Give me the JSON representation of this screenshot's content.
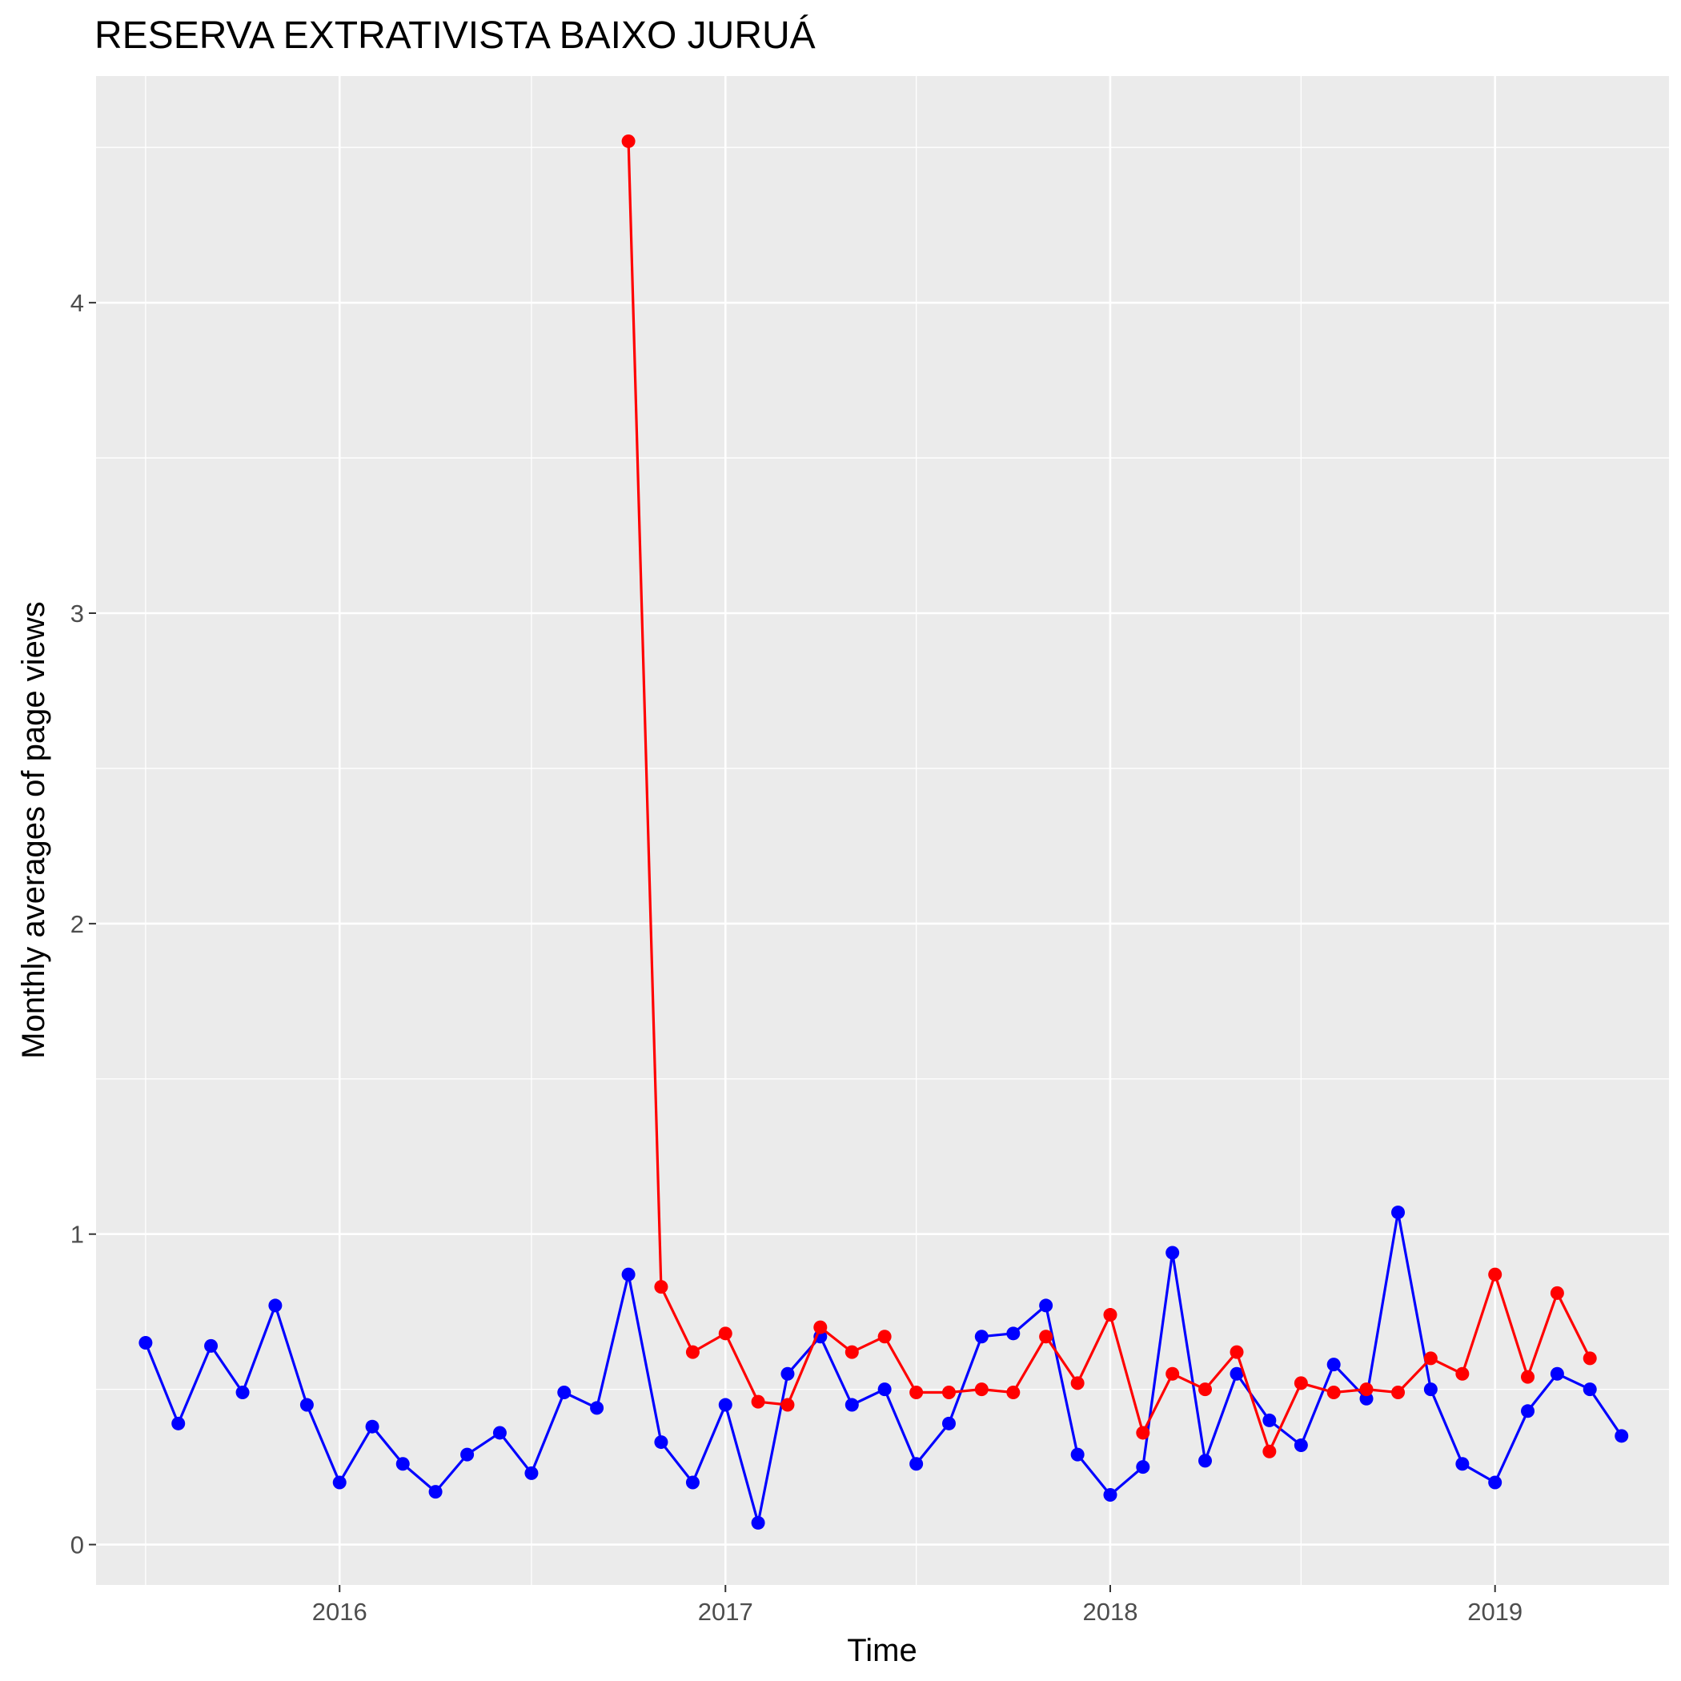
{
  "chart_data": {
    "type": "line",
    "title": "RESERVA EXTRATIVISTA BAIXO JURUÁ",
    "xlabel": "Time",
    "ylabel": "Monthly averages of page views",
    "x_ticks": [
      "2016",
      "2017",
      "2018",
      "2019"
    ],
    "y_ticks": [
      "0",
      "1",
      "2",
      "3",
      "4"
    ],
    "xlim": [
      "2015-05-15",
      "2019-06-15"
    ],
    "ylim": [
      -0.13,
      4.73
    ],
    "grid": true,
    "legend": "none",
    "series": [
      {
        "color": "#0000ff",
        "points": [
          [
            "2015-07-01",
            0.65
          ],
          [
            "2015-08-01",
            0.39
          ],
          [
            "2015-09-01",
            0.64
          ],
          [
            "2015-10-01",
            0.49
          ],
          [
            "2015-11-01",
            0.77
          ],
          [
            "2015-12-01",
            0.45
          ],
          [
            "2016-01-01",
            0.2
          ],
          [
            "2016-02-01",
            0.38
          ],
          [
            "2016-03-01",
            0.26
          ],
          [
            "2016-04-01",
            0.17
          ],
          [
            "2016-05-01",
            0.29
          ],
          [
            "2016-06-01",
            0.36
          ],
          [
            "2016-07-01",
            0.23
          ],
          [
            "2016-08-01",
            0.49
          ],
          [
            "2016-09-01",
            0.44
          ],
          [
            "2016-10-01",
            0.87
          ],
          [
            "2016-11-01",
            0.33
          ],
          [
            "2016-12-01",
            0.2
          ],
          [
            "2017-01-01",
            0.45
          ],
          [
            "2017-02-01",
            0.07
          ],
          [
            "2017-03-01",
            0.55
          ],
          [
            "2017-04-01",
            0.67
          ],
          [
            "2017-05-01",
            0.45
          ],
          [
            "2017-06-01",
            0.5
          ],
          [
            "2017-07-01",
            0.26
          ],
          [
            "2017-08-01",
            0.39
          ],
          [
            "2017-09-01",
            0.67
          ],
          [
            "2017-10-01",
            0.68
          ],
          [
            "2017-11-01",
            0.77
          ],
          [
            "2017-12-01",
            0.29
          ],
          [
            "2018-01-01",
            0.16
          ],
          [
            "2018-02-01",
            0.25
          ],
          [
            "2018-03-01",
            0.94
          ],
          [
            "2018-04-01",
            0.27
          ],
          [
            "2018-05-01",
            0.55
          ],
          [
            "2018-06-01",
            0.4
          ],
          [
            "2018-07-01",
            0.32
          ],
          [
            "2018-08-01",
            0.58
          ],
          [
            "2018-09-01",
            0.47
          ],
          [
            "2018-10-01",
            1.07
          ],
          [
            "2018-11-01",
            0.5
          ],
          [
            "2018-12-01",
            0.26
          ],
          [
            "2019-01-01",
            0.2
          ],
          [
            "2019-02-01",
            0.43
          ],
          [
            "2019-03-01",
            0.55
          ],
          [
            "2019-04-01",
            0.5
          ],
          [
            "2019-05-01",
            0.35
          ]
        ]
      },
      {
        "color": "#ff0000",
        "points": [
          [
            "2016-10-01",
            4.52
          ],
          [
            "2016-11-01",
            0.83
          ],
          [
            "2016-12-01",
            0.62
          ],
          [
            "2017-01-01",
            0.68
          ],
          [
            "2017-02-01",
            0.46
          ],
          [
            "2017-03-01",
            0.45
          ],
          [
            "2017-04-01",
            0.7
          ],
          [
            "2017-05-01",
            0.62
          ],
          [
            "2017-06-01",
            0.67
          ],
          [
            "2017-07-01",
            0.49
          ],
          [
            "2017-08-01",
            0.49
          ],
          [
            "2017-09-01",
            0.5
          ],
          [
            "2017-10-01",
            0.49
          ],
          [
            "2017-11-01",
            0.67
          ],
          [
            "2017-12-01",
            0.52
          ],
          [
            "2018-01-01",
            0.74
          ],
          [
            "2018-02-01",
            0.36
          ],
          [
            "2018-03-01",
            0.55
          ],
          [
            "2018-04-01",
            0.5
          ],
          [
            "2018-05-01",
            0.62
          ],
          [
            "2018-06-01",
            0.3
          ],
          [
            "2018-07-01",
            0.52
          ],
          [
            "2018-08-01",
            0.49
          ],
          [
            "2018-09-01",
            0.5
          ],
          [
            "2018-10-01",
            0.49
          ],
          [
            "2018-11-01",
            0.6
          ],
          [
            "2018-12-01",
            0.55
          ],
          [
            "2019-01-01",
            0.87
          ],
          [
            "2019-02-01",
            0.54
          ],
          [
            "2019-03-01",
            0.81
          ],
          [
            "2019-04-01",
            0.6
          ]
        ]
      }
    ]
  }
}
